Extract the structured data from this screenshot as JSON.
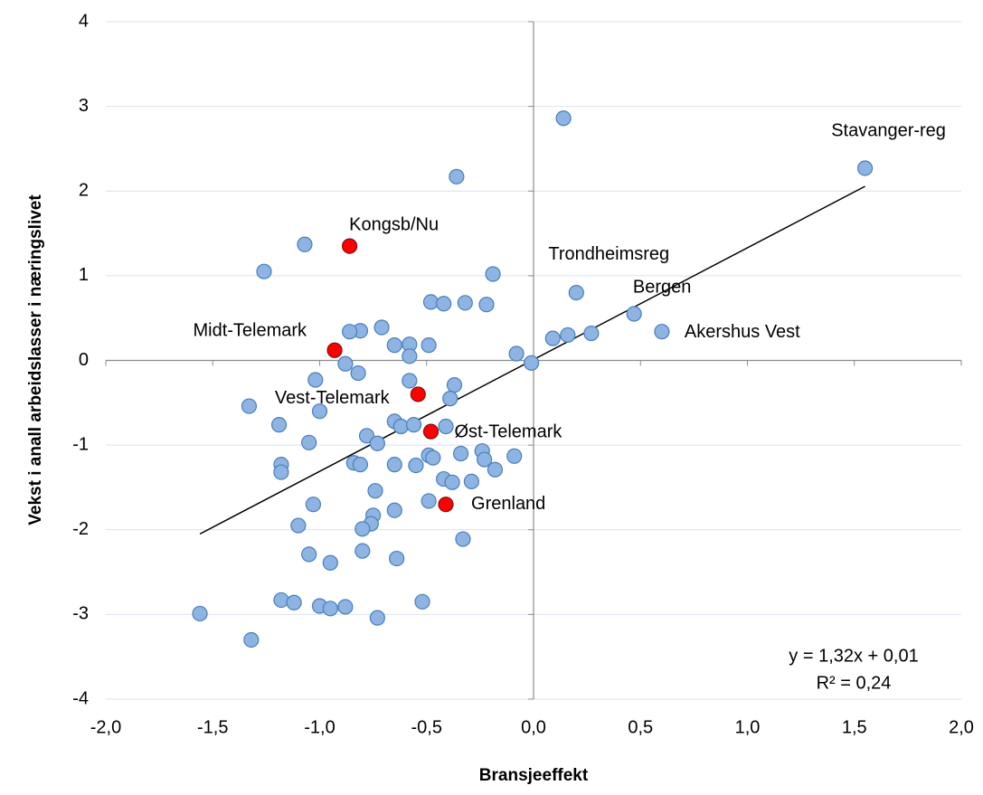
{
  "chart_data": {
    "type": "scatter",
    "x_label": "Bransjeeffekt",
    "y_label": "Vekst i anall arbeidslasser i næringslivet",
    "xlim": [
      -2.0,
      2.0
    ],
    "ylim": [
      -4,
      4
    ],
    "xticks": [
      {
        "value": -2.0,
        "label": "-2,0"
      },
      {
        "value": -1.5,
        "label": "-1,5"
      },
      {
        "value": -1.0,
        "label": "-1,0"
      },
      {
        "value": -0.5,
        "label": "-0,5"
      },
      {
        "value": 0.0,
        "label": "0,0"
      },
      {
        "value": 0.5,
        "label": "0,5"
      },
      {
        "value": 1.0,
        "label": "1,0"
      },
      {
        "value": 1.5,
        "label": "1,5"
      },
      {
        "value": 2.0,
        "label": "2,0"
      }
    ],
    "yticks": [
      -4,
      -3,
      -2,
      -1,
      0,
      1,
      2,
      3,
      4
    ],
    "grid": true,
    "series": [
      {
        "color": "#8db4e2",
        "x": [
          0.14,
          1.55,
          -0.36,
          -1.07,
          -1.26,
          -0.19,
          0.2,
          -0.48,
          -0.42,
          -0.32,
          -0.22,
          0.47,
          0.6,
          -0.71,
          -0.81,
          -0.86,
          -0.65,
          -0.58,
          -0.49,
          -0.58,
          0.09,
          0.16,
          0.27,
          -0.08,
          -0.01,
          -0.88,
          -0.82,
          -1.02,
          -0.58,
          -0.37,
          -0.39,
          -1.33,
          -1.0,
          -1.19,
          -0.65,
          -0.62,
          -0.56,
          -0.41,
          -0.78,
          -0.73,
          -1.05,
          -0.49,
          -0.47,
          -0.34,
          -0.24,
          -0.23,
          -0.09,
          -1.18,
          -1.18,
          -0.84,
          -0.81,
          -0.65,
          -0.55,
          -0.18,
          -0.42,
          -0.38,
          -0.29,
          -0.74,
          -0.49,
          -1.03,
          -0.65,
          -0.75,
          -0.76,
          -1.1,
          -0.8,
          -0.33,
          -0.8,
          -1.05,
          -0.95,
          -0.64,
          -1.18,
          -1.12,
          -1.0,
          -0.88,
          -0.52,
          -0.95,
          -0.73,
          -1.56,
          -1.32
        ],
        "values": [
          2.86,
          2.27,
          2.17,
          1.37,
          1.05,
          1.02,
          0.8,
          0.69,
          0.67,
          0.68,
          0.66,
          0.55,
          0.34,
          0.39,
          0.35,
          0.34,
          0.18,
          0.19,
          0.18,
          0.05,
          0.26,
          0.3,
          0.32,
          0.08,
          -0.03,
          -0.04,
          -0.15,
          -0.23,
          -0.24,
          -0.29,
          -0.45,
          -0.54,
          -0.6,
          -0.76,
          -0.72,
          -0.78,
          -0.76,
          -0.78,
          -0.89,
          -0.98,
          -0.97,
          -1.12,
          -1.15,
          -1.1,
          -1.07,
          -1.17,
          -1.13,
          -1.23,
          -1.32,
          -1.21,
          -1.23,
          -1.23,
          -1.24,
          -1.29,
          -1.4,
          -1.44,
          -1.43,
          -1.54,
          -1.66,
          -1.7,
          -1.77,
          -1.83,
          -1.93,
          -1.95,
          -1.99,
          -2.11,
          -2.25,
          -2.29,
          -2.39,
          -2.34,
          -2.83,
          -2.86,
          -2.9,
          -2.91,
          -2.85,
          -2.93,
          -3.04,
          -2.99,
          -3.3
        ],
        "labels": [
          null,
          "Stavanger-reg",
          null,
          null,
          null,
          null,
          "Trondheimsreg",
          null,
          null,
          null,
          null,
          "Bergen",
          "Akershus Vest",
          null,
          null,
          null,
          null,
          null,
          null,
          null,
          null,
          null,
          null,
          null,
          null,
          null,
          null,
          null,
          null,
          null,
          null,
          null,
          null,
          null,
          null,
          null,
          null,
          null,
          null,
          null,
          null,
          null,
          null,
          null,
          null,
          null,
          null,
          null,
          null,
          null,
          null,
          null,
          null,
          null,
          null,
          null,
          null,
          null,
          null,
          null,
          null,
          null,
          null,
          null,
          null,
          null,
          null,
          null,
          null,
          null,
          null,
          null,
          null,
          null,
          null,
          null,
          null,
          null,
          null
        ]
      },
      {
        "color": "#ff0000",
        "x": [
          -0.86,
          -0.93,
          -0.54,
          -0.48,
          -0.41
        ],
        "values": [
          1.35,
          0.12,
          -0.4,
          -0.84,
          -1.7
        ],
        "labels": [
          "Kongsb/Nu",
          "Midt-Telemark",
          "Vest-Telemark",
          "Øst-Telemark",
          "Grenland"
        ]
      }
    ],
    "trendline": {
      "equation": "y = 1,32x + 0,01",
      "r2": "R² = 0,24",
      "slope": 1.32,
      "intercept": 0.01,
      "x_range": [
        -1.56,
        1.55
      ]
    }
  }
}
